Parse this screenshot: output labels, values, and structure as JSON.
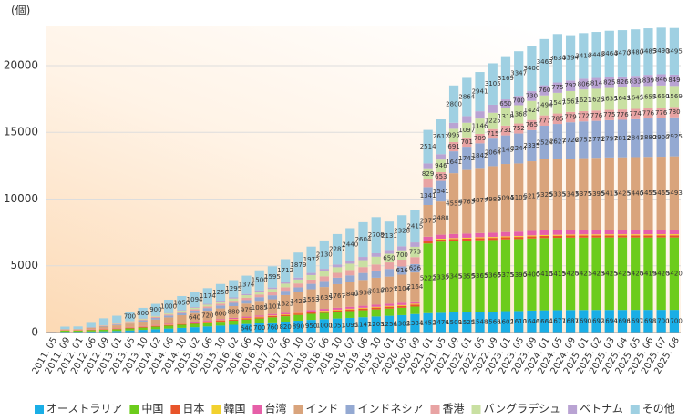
{
  "chart_data": {
    "type": "stacked_bar",
    "ylabel": "(個)",
    "categories": [
      "2011. 05",
      "2011. 09",
      "2012. 01",
      "2012. 06",
      "2012. 09",
      "2013. 01",
      "2013. 05",
      "2013. 10",
      "2014. 02",
      "2014. 06",
      "2014. 10",
      "2015. 02",
      "2015. 06",
      "2015. 10",
      "2016. 02",
      "2016. 06",
      "2016. 10",
      "2017. 02",
      "2017. 06",
      "2017. 10",
      "2018. 02",
      "2018. 06",
      "2018. 10",
      "2019. 02",
      "2019. 06",
      "2019. 10",
      "2020. 01",
      "2020. 05",
      "2020. 09",
      "2021. 01",
      "2021. 05",
      "2021. 09",
      "2022. 01",
      "2022. 05",
      "2022. 09",
      "2023. 01",
      "2023. 05",
      "2023. 09",
      "2024. 01",
      "2024. 05",
      "2024. 09",
      "2025. 01",
      "2025. 02",
      "2025. 03",
      "2025. 04",
      "2025. 05",
      "2025. 06",
      "2025. 07",
      "2025. 08"
    ],
    "series": [
      {
        "name": "オーストラリア",
        "color": "#1aaee6",
        "values": [
          10,
          60,
          62,
          80,
          95,
          120,
          160,
          200,
          250,
          300,
          350,
          400,
          460,
          520,
          580,
          640,
          700,
          760,
          820,
          890,
          950,
          1000,
          1051,
          1095,
          1147,
          1203,
          1256,
          1302,
          1384,
          1452,
          1476,
          1509,
          1525,
          1548,
          1566,
          1602,
          1610,
          1646,
          1664,
          1677,
          1687,
          1690,
          1692,
          1694,
          1696,
          1697,
          1698,
          1700,
          1700
        ]
      },
      {
        "name": "中国",
        "color": "#6ccc1c",
        "values": [
          20,
          80,
          80,
          100,
          120,
          130,
          150,
          170,
          190,
          210,
          230,
          250,
          270,
          290,
          310,
          330,
          350,
          380,
          400,
          430,
          450,
          470,
          490,
          510,
          521,
          530,
          540,
          550,
          560,
          5222,
          5335,
          5345,
          5355,
          5365,
          5366,
          5375,
          5390,
          5400,
          5410,
          5415,
          5420,
          5421,
          5423,
          5425,
          5425,
          5420,
          5419,
          5420,
          5420
        ]
      },
      {
        "name": "日本",
        "color": "#e8542a",
        "values": [
          5,
          20,
          20,
          25,
          30,
          35,
          40,
          45,
          50,
          55,
          60,
          65,
          70,
          75,
          80,
          85,
          90,
          95,
          100,
          105,
          110,
          115,
          120,
          125,
          130,
          135,
          140,
          145,
          150,
          152,
          153,
          154,
          155,
          156,
          157,
          158,
          159,
          160,
          161,
          162,
          163,
          164,
          164,
          165,
          165,
          166,
          166,
          167,
          167
        ]
      },
      {
        "name": "韓国",
        "color": "#f2d12e",
        "values": [
          3,
          10,
          10,
          12,
          14,
          16,
          18,
          20,
          22,
          24,
          26,
          28,
          30,
          32,
          34,
          36,
          38,
          40,
          42,
          44,
          46,
          48,
          50,
          52,
          54,
          56,
          58,
          60,
          62,
          64,
          65,
          66,
          67,
          68,
          69,
          70,
          71,
          72,
          73,
          74,
          75,
          76,
          76,
          77,
          77,
          78,
          78,
          79,
          79
        ]
      },
      {
        "name": "台湾",
        "color": "#e65fa8",
        "values": [
          5,
          20,
          22,
          28,
          34,
          40,
          46,
          52,
          58,
          64,
          70,
          76,
          82,
          88,
          94,
          100,
          106,
          112,
          118,
          124,
          130,
          136,
          142,
          148,
          154,
          160,
          166,
          172,
          178,
          290,
          300,
          305,
          310,
          315,
          320,
          325,
          330,
          333,
          335,
          336,
          337,
          338,
          338,
          339,
          338,
          339,
          340,
          337,
          338
        ]
      },
      {
        "name": "インド",
        "color": "#d9a47c",
        "values": [
          5,
          40,
          40,
          100,
          150,
          200,
          260,
          330,
          400,
          480,
          560,
          640,
          720,
          800,
          880,
          975,
          1085,
          1101,
          1323,
          1429,
          1553,
          1635,
          1767,
          1840,
          1930,
          2018,
          2027,
          2104,
          2164,
          2375,
          2488,
          4555,
          4763,
          4877,
          4983,
          5094,
          5105,
          5217,
          5325,
          5335,
          5343,
          5375,
          5395,
          5413,
          5425,
          5440,
          5455,
          5465,
          5493
        ]
      },
      {
        "name": "インドネシア",
        "color": "#94a9d2",
        "values": [
          3,
          15,
          15,
          30,
          45,
          60,
          80,
          100,
          120,
          140,
          160,
          180,
          200,
          220,
          240,
          260,
          280,
          300,
          325,
          360,
          405,
          459,
          490,
          511,
          525,
          542,
          575,
          616,
          626,
          1341,
          1541,
          1641,
          1742,
          1842,
          2064,
          2145,
          2244,
          2335,
          2524,
          2627,
          2726,
          2751,
          2771,
          2797,
          2812,
          2841,
          2880,
          2900,
          2925
        ]
      },
      {
        "name": "香港",
        "color": "#e8a3a3",
        "values": [
          2,
          10,
          10,
          20,
          30,
          40,
          50,
          60,
          70,
          80,
          95,
          110,
          125,
          140,
          160,
          180,
          200,
          230,
          260,
          290,
          320,
          346,
          360,
          405,
          441,
          455,
          490,
          511,
          525,
          580,
          653,
          691,
          701,
          709,
          715,
          731,
          752,
          765,
          777,
          785,
          779,
          772,
          776,
          775,
          776,
          774,
          776,
          776,
          780
        ]
      },
      {
        "name": "バングラデシュ",
        "color": "#c9e0a2",
        "values": [
          1,
          5,
          5,
          10,
          20,
          30,
          40,
          50,
          60,
          75,
          90,
          110,
          130,
          150,
          170,
          190,
          210,
          240,
          270,
          300,
          340,
          380,
          420,
          470,
          520,
          580,
          650,
          700,
          773,
          829,
          946,
          995,
          1097,
          1146,
          1225,
          1318,
          1368,
          1424,
          1494,
          1547,
          1561,
          1621,
          1625,
          1635,
          1643,
          1645,
          1655,
          1660,
          1569
        ]
      },
      {
        "name": "ベトナム",
        "color": "#b9a3d3",
        "values": [
          1,
          3,
          3,
          5,
          8,
          10,
          15,
          20,
          25,
          30,
          40,
          50,
          60,
          70,
          80,
          90,
          100,
          110,
          125,
          140,
          160,
          180,
          200,
          220,
          240,
          260,
          280,
          300,
          330,
          360,
          400,
          450,
          500,
          550,
          600,
          650,
          700,
          730,
          760,
          775,
          792,
          806,
          814,
          825,
          826,
          833,
          839,
          846,
          849
        ]
      },
      {
        "name": "その他",
        "color": "#9fd0e2",
        "values": [
          10,
          180,
          190,
          380,
          520,
          580,
          700,
          800,
          900,
          1000,
          1050,
          1094,
          1174,
          1250,
          1295,
          1374,
          1500,
          1595,
          1712,
          1879,
          1972,
          2130,
          2287,
          2440,
          2604,
          2708,
          2131,
          2328,
          2415,
          2514,
          2612,
          2800,
          2864,
          2941,
          3105,
          3169,
          3347,
          3400,
          3463,
          3634,
          3394,
          3418,
          3445,
          3464,
          3470,
          3480,
          3485,
          3490,
          3495
        ]
      }
    ],
    "ylim": [
      0,
      23000
    ],
    "yticks": [
      0,
      5000,
      10000,
      15000,
      20000
    ],
    "grid": true,
    "legend": "bottom"
  }
}
